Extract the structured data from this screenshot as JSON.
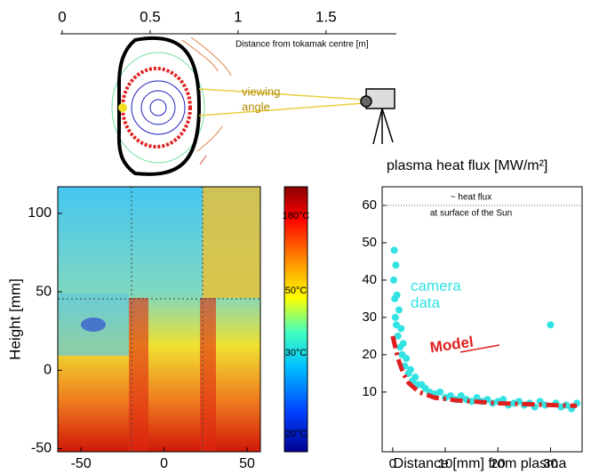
{
  "chart_data": [
    {
      "type": "axis",
      "xlabel": "Distance from tokamak centre [m]",
      "xlim": [
        0,
        1.9
      ],
      "xticks": [
        0,
        0.5,
        1,
        1.5
      ],
      "annotations": [
        "viewing",
        "angle"
      ]
    },
    {
      "type": "heatmap",
      "ylabel": "Height [mm]",
      "xlim": [
        -64,
        58
      ],
      "ylim": [
        -52,
        117
      ],
      "xticks": [
        -50,
        0,
        50
      ],
      "yticks": [
        -50,
        0,
        50,
        100
      ],
      "colorbar_labels": [
        "180°C",
        "50°C",
        "30°C",
        "20°C"
      ]
    },
    {
      "type": "scatter",
      "title": "plasma heat flux [MW/m²]",
      "xlabel": "Distance [mm] from plasma",
      "xlim": [
        -2,
        36
      ],
      "ylim": [
        -6,
        65
      ],
      "xticks": [
        0,
        10,
        20,
        30
      ],
      "yticks": [
        10,
        20,
        30,
        40,
        50,
        60
      ],
      "hline": 60,
      "annotations": [
        "~ heat flux",
        "at surface of the Sun"
      ],
      "series": [
        {
          "name": "camera data",
          "color": "#33e3e3",
          "x": [
            0.2,
            0.3,
            0.4,
            0.5,
            0.6,
            0.7,
            0.8,
            1.0,
            1.2,
            1.4,
            1.6,
            1.8,
            2.0,
            2.3,
            2.6,
            3.0,
            3.4,
            3.8,
            4.3,
            4.8,
            5.5,
            6.2,
            7.0,
            8,
            9,
            10,
            11,
            12,
            13,
            14,
            15,
            16,
            17,
            18,
            19,
            20,
            21,
            22,
            23,
            24,
            25,
            26,
            27,
            28,
            29,
            30,
            31,
            32,
            33,
            34,
            35
          ],
          "y": [
            40,
            48,
            35,
            30,
            44,
            28,
            36,
            25,
            32,
            22,
            27,
            20,
            23,
            17,
            19,
            15,
            16,
            13,
            14,
            12,
            12,
            11,
            10,
            9.5,
            10,
            8.5,
            9,
            8,
            9,
            8,
            7.5,
            8.5,
            7.5,
            8,
            7,
            7.5,
            8,
            6.5,
            7,
            7.5,
            6.5,
            7,
            6,
            7.5,
            6.5,
            28,
            7,
            6,
            6.5,
            5.5,
            7
          ]
        },
        {
          "name": "Model",
          "color": "#e02020",
          "x": [
            0,
            1,
            2,
            3,
            5,
            8,
            12,
            20,
            35
          ],
          "y": [
            25,
            19,
            15,
            12.5,
            10,
            8.5,
            7.8,
            7,
            6.3
          ]
        }
      ]
    }
  ]
}
